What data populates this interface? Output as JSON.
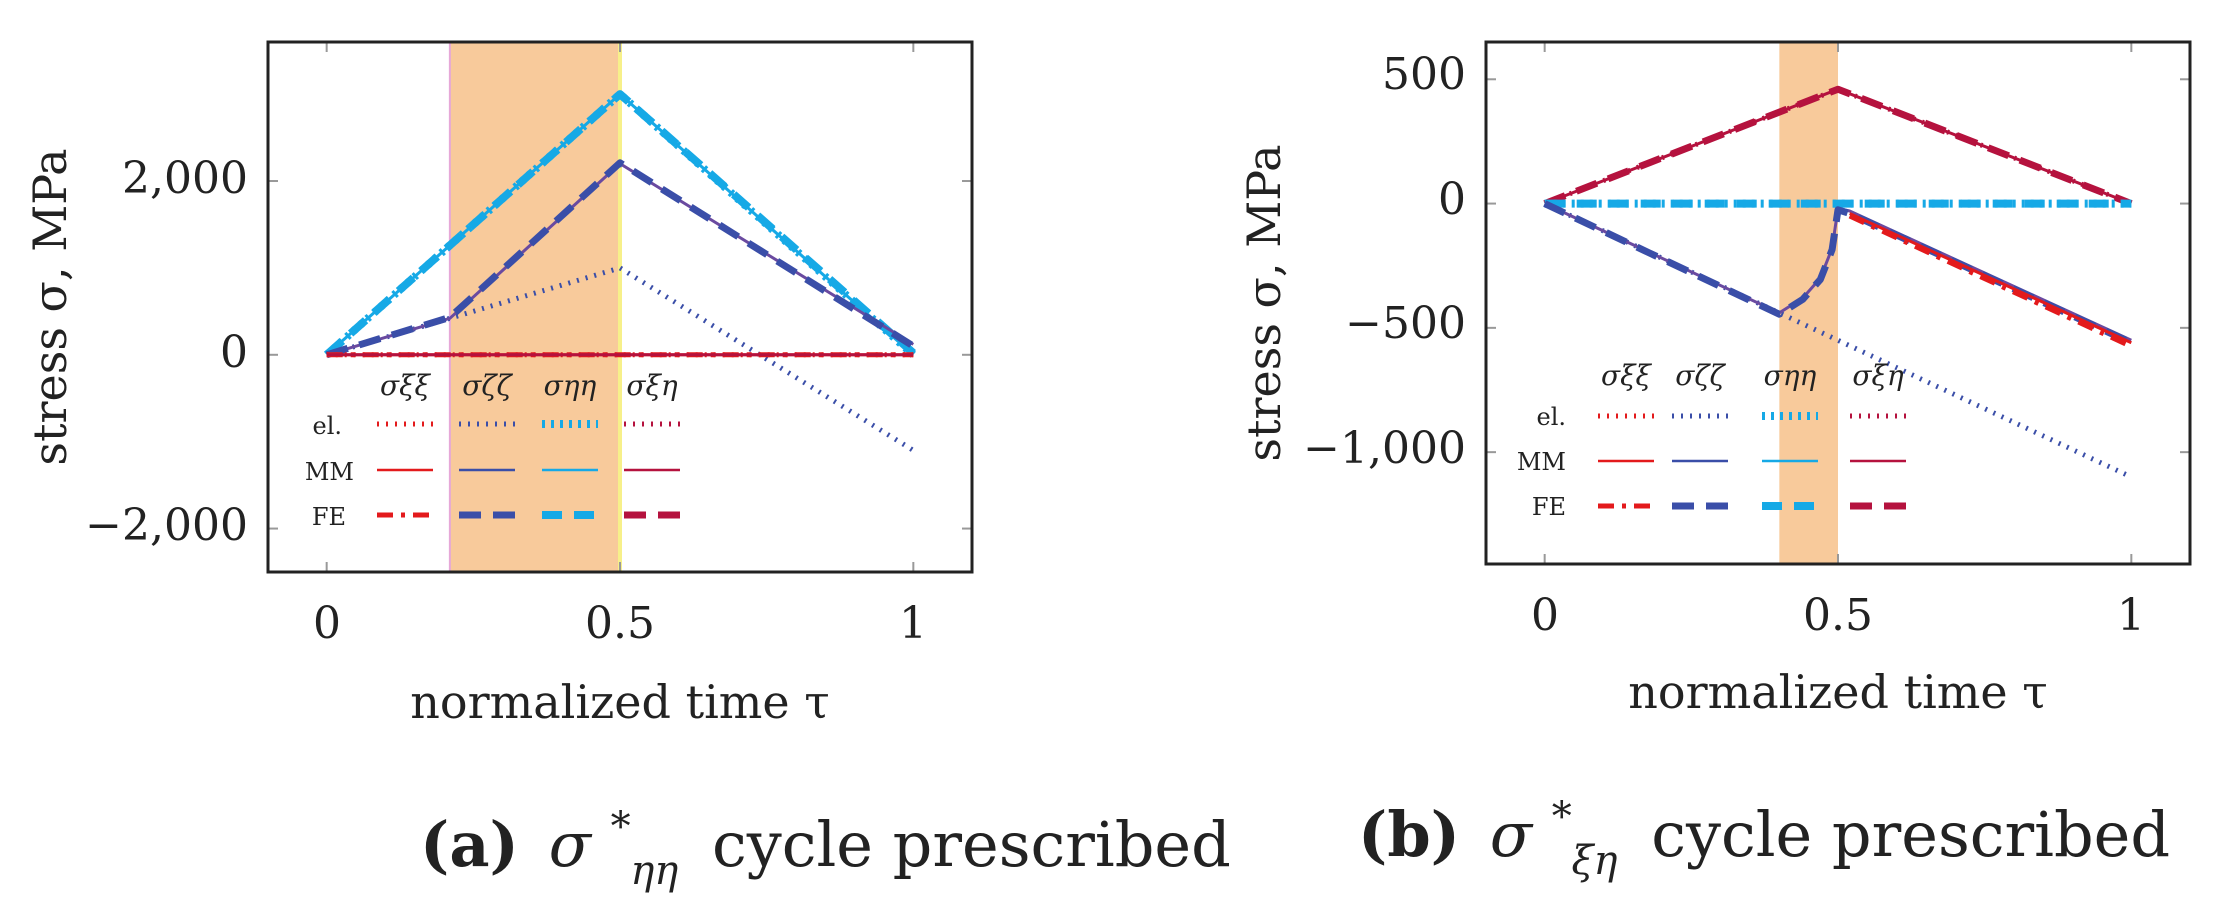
{
  "colors": {
    "red": "#e31a1c",
    "blue": "#3a4ea8",
    "cyan": "#16a9e6",
    "crimson": "#b5123e",
    "purple": "#6a4aa0",
    "shade": "#f5b87a"
  },
  "chart_data": [
    {
      "type": "line",
      "caption": {
        "label": "(a)",
        "sym": "σ",
        "sup": "*",
        "sub": "ηη",
        "text": "cycle prescribed"
      },
      "xlabel": "normalized time τ",
      "ylabel": "stress σ, MPa",
      "xlim": [
        -0.1,
        1.1
      ],
      "ylim": [
        -2500,
        3600
      ],
      "xticks": [
        0,
        0.5,
        1
      ],
      "xtick_labels": [
        "0",
        "0.5",
        "1"
      ],
      "yticks": [
        -2000,
        0,
        2000
      ],
      "ytick_labels": [
        "−2,000",
        "0",
        "2,000"
      ],
      "shaded_interval": [
        0.21,
        0.5
      ],
      "legend": {
        "columns": [
          "σξξ",
          "σζζ",
          "σηη",
          "σξη"
        ],
        "rows": [
          "el.",
          "MM",
          "FE"
        ]
      },
      "series": [
        {
          "name": "σηη el.",
          "color": "cyan",
          "style": "dotted-thick",
          "x": [
            0,
            0.5,
            1
          ],
          "y": [
            0,
            3000,
            0
          ]
        },
        {
          "name": "σηη MM",
          "color": "cyan",
          "style": "solid",
          "x": [
            0,
            0.5,
            1
          ],
          "y": [
            0,
            3000,
            0
          ]
        },
        {
          "name": "σηη FE",
          "color": "cyan",
          "style": "dashed-thick",
          "x": [
            0,
            0.5,
            1
          ],
          "y": [
            0,
            3000,
            20
          ]
        },
        {
          "name": "σζζ el.",
          "color": "blue",
          "style": "dotted",
          "x": [
            0,
            0.5,
            1
          ],
          "y": [
            0,
            1000,
            -1100
          ]
        },
        {
          "name": "σζζ MM",
          "color": "purple",
          "style": "solid",
          "x": [
            0,
            0.21,
            0.5,
            1
          ],
          "y": [
            0,
            420,
            2200,
            120
          ]
        },
        {
          "name": "σζζ FE",
          "color": "blue",
          "style": "dashed",
          "x": [
            0,
            0.21,
            0.5,
            1
          ],
          "y": [
            0,
            430,
            2210,
            100
          ]
        },
        {
          "name": "σξξ el.",
          "color": "red",
          "style": "dotted",
          "x": [
            0,
            1
          ],
          "y": [
            0,
            0
          ]
        },
        {
          "name": "σξξ MM",
          "color": "red",
          "style": "solid",
          "x": [
            0,
            1
          ],
          "y": [
            0,
            0
          ]
        },
        {
          "name": "σξξ FE",
          "color": "red",
          "style": "dashdot",
          "x": [
            0,
            1
          ],
          "y": [
            0,
            0
          ]
        },
        {
          "name": "σξη MM",
          "color": "crimson",
          "style": "solid",
          "x": [
            0,
            1
          ],
          "y": [
            0,
            0
          ]
        }
      ]
    },
    {
      "type": "line",
      "caption": {
        "label": "(b)",
        "sym": "σ",
        "sup": "*",
        "sub": "ξη",
        "text": "cycle prescribed"
      },
      "xlabel": "normalized time τ",
      "ylabel": "stress σ, MPa",
      "xlim": [
        -0.1,
        1.1
      ],
      "ylim": [
        -1450,
        650
      ],
      "xticks": [
        0,
        0.5,
        1
      ],
      "xtick_labels": [
        "0",
        "0.5",
        "1"
      ],
      "yticks": [
        -1000,
        -500,
        0,
        500
      ],
      "ytick_labels": [
        "−1,000",
        "−500",
        "0",
        "500"
      ],
      "shaded_interval": [
        0.4,
        0.5
      ],
      "legend": {
        "columns": [
          "σξξ",
          "σζζ",
          "σηη",
          "σξη"
        ],
        "rows": [
          "el.",
          "MM",
          "FE"
        ]
      },
      "series": [
        {
          "name": "σξη el.",
          "color": "crimson",
          "style": "dotted",
          "x": [
            0,
            0.5,
            1
          ],
          "y": [
            0,
            460,
            0
          ]
        },
        {
          "name": "σξη MM",
          "color": "crimson",
          "style": "solid",
          "x": [
            0,
            0.5,
            1
          ],
          "y": [
            0,
            460,
            0
          ]
        },
        {
          "name": "σξη FE",
          "color": "crimson",
          "style": "dashed",
          "x": [
            0,
            0.5,
            1
          ],
          "y": [
            0,
            460,
            0
          ]
        },
        {
          "name": "σηη el.",
          "color": "cyan",
          "style": "dotted-thick",
          "x": [
            0,
            1
          ],
          "y": [
            0,
            0
          ]
        },
        {
          "name": "σηη FE",
          "color": "cyan",
          "style": "dashed-thick",
          "x": [
            0,
            1
          ],
          "y": [
            0,
            0
          ]
        },
        {
          "name": "σζζ el.",
          "color": "blue",
          "style": "dotted",
          "x": [
            0,
            1
          ],
          "y": [
            0,
            -1100
          ]
        },
        {
          "name": "σζζ MM",
          "color": "purple",
          "style": "solid",
          "x": [
            0,
            0.4,
            0.44,
            0.47,
            0.49,
            0.5,
            0.52,
            1
          ],
          "y": [
            0,
            -440,
            -380,
            -300,
            -180,
            -20,
            -30,
            -550
          ]
        },
        {
          "name": "σζζ FE",
          "color": "blue",
          "style": "dashed",
          "x": [
            0,
            0.4,
            0.44,
            0.47,
            0.49,
            0.5,
            0.52,
            1
          ],
          "y": [
            0,
            -445,
            -385,
            -305,
            -185,
            -25,
            -40,
            -560
          ]
        },
        {
          "name": "σξξ MM",
          "color": "red",
          "style": "solid",
          "x": [
            0.52,
            1
          ],
          "y": [
            -40,
            -560
          ]
        },
        {
          "name": "σξξ FE",
          "color": "red",
          "style": "dashdot",
          "x": [
            0.52,
            1
          ],
          "y": [
            -50,
            -575
          ]
        }
      ]
    }
  ]
}
